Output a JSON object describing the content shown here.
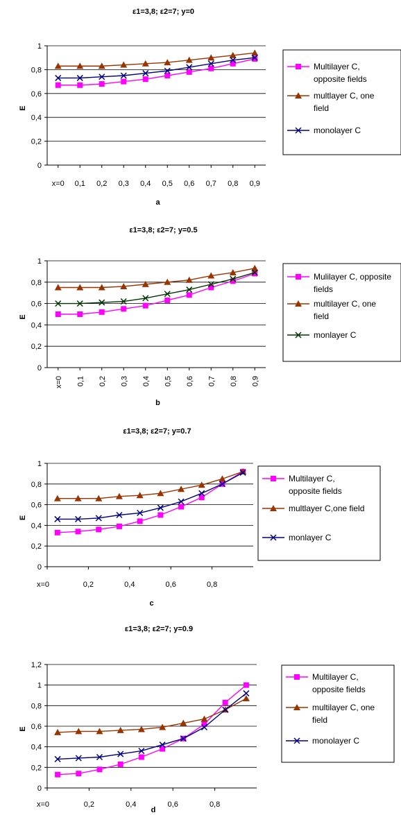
{
  "chart_data": [
    {
      "type": "line",
      "title": "ε1=3,8; ε2=7;  y=0",
      "caption": "a",
      "ylabel": "E",
      "xlabel": "",
      "ylim": [
        0,
        1
      ],
      "y_ticks": [
        "0",
        "0,2",
        "0,4",
        "0,6",
        "0,8",
        "1"
      ],
      "x_ticks": [
        "x=0",
        "0,1",
        "0,2",
        "0,3",
        "0,4",
        "0,5",
        "0,6",
        "0,7",
        "0,8",
        "0,9"
      ],
      "x_tick_rotated": false,
      "x": [
        0,
        0.1,
        0.2,
        0.3,
        0.4,
        0.5,
        0.6,
        0.7,
        0.8,
        0.9
      ],
      "grid": true,
      "legend_position": "right",
      "series": [
        {
          "name": "Multilayer C, opposite fields",
          "legend_lines": [
            "Multilayer C,",
            "opposite fields"
          ],
          "marker": "square",
          "color": "#ff00ff",
          "values": [
            0.67,
            0.67,
            0.68,
            0.7,
            0.72,
            0.75,
            0.78,
            0.81,
            0.85,
            0.89
          ]
        },
        {
          "name": "multlayer C, one field",
          "legend_lines": [
            "multlayer C, one",
            "field"
          ],
          "marker": "triangle",
          "color": "#993300",
          "values": [
            0.83,
            0.83,
            0.83,
            0.84,
            0.85,
            0.86,
            0.88,
            0.9,
            0.92,
            0.94
          ]
        },
        {
          "name": "monolayer C",
          "legend_lines": [
            "monolayer C"
          ],
          "marker": "x",
          "color": "#000080",
          "values": [
            0.73,
            0.73,
            0.74,
            0.75,
            0.77,
            0.79,
            0.82,
            0.85,
            0.88,
            0.9
          ]
        }
      ]
    },
    {
      "type": "line",
      "title": "ε1=3,8; ε2=7;  y=0.5",
      "caption": "b",
      "ylabel": "E",
      "xlabel": "",
      "ylim": [
        0,
        1
      ],
      "y_ticks": [
        "0",
        "0,2",
        "0,4",
        "0,6",
        "0,8",
        "1"
      ],
      "x_ticks": [
        "x=0",
        "0,1",
        "0,2",
        "0,3",
        "0,4",
        "0,5",
        "0,6",
        "0,7",
        "0,8",
        "0,9"
      ],
      "x_tick_rotated": true,
      "x": [
        0,
        0.1,
        0.2,
        0.3,
        0.4,
        0.5,
        0.6,
        0.7,
        0.8,
        0.9
      ],
      "grid": true,
      "legend_position": "right",
      "series": [
        {
          "name": "Mulilayer C, opposite fields",
          "legend_lines": [
            "Mulilayer C, opposite",
            "fields"
          ],
          "marker": "square",
          "color": "#ff00ff",
          "values": [
            0.5,
            0.5,
            0.52,
            0.55,
            0.58,
            0.63,
            0.68,
            0.75,
            0.81,
            0.88
          ]
        },
        {
          "name": "multilayer C, one field",
          "legend_lines": [
            "multilayer C, one",
            "field"
          ],
          "marker": "triangle",
          "color": "#993300",
          "values": [
            0.75,
            0.75,
            0.75,
            0.76,
            0.78,
            0.8,
            0.82,
            0.86,
            0.89,
            0.93
          ]
        },
        {
          "name": "monlayer C",
          "legend_lines": [
            "monlayer C"
          ],
          "marker": "x",
          "color": "#003300",
          "values": [
            0.6,
            0.6,
            0.61,
            0.62,
            0.65,
            0.69,
            0.73,
            0.78,
            0.83,
            0.89
          ]
        }
      ]
    },
    {
      "type": "line",
      "title": "ε1=3,8; ε2=7;  y=0.7",
      "caption": "c",
      "ylabel": "E",
      "xlabel": "",
      "ylim": [
        0,
        1
      ],
      "y_ticks": [
        "0",
        "0,2",
        "0,4",
        "0,6",
        "0,8",
        "1"
      ],
      "x_ticks": [
        "x=0",
        "0,2",
        "0,4",
        "0,6",
        "0,8"
      ],
      "x_tick_rotated": false,
      "x": [
        0.05,
        0.15,
        0.25,
        0.35,
        0.45,
        0.55,
        0.65,
        0.75,
        0.85,
        0.95
      ],
      "grid": true,
      "legend_position": "right",
      "series": [
        {
          "name": "Multilayer C, opposite fields",
          "legend_lines": [
            "Multilayer C,",
            "opposite fields"
          ],
          "marker": "square",
          "color": "#ff00ff",
          "values": [
            0.33,
            0.34,
            0.36,
            0.39,
            0.44,
            0.5,
            0.58,
            0.67,
            0.8,
            0.92
          ]
        },
        {
          "name": "multlayer C,one field",
          "legend_lines": [
            "multlayer C,one field"
          ],
          "marker": "triangle",
          "color": "#993300",
          "values": [
            0.66,
            0.66,
            0.66,
            0.68,
            0.69,
            0.71,
            0.75,
            0.79,
            0.85,
            0.92
          ]
        },
        {
          "name": "monlayer C",
          "legend_lines": [
            "monlayer C"
          ],
          "marker": "x",
          "color": "#000080",
          "values": [
            0.46,
            0.46,
            0.47,
            0.5,
            0.52,
            0.57,
            0.63,
            0.71,
            0.8,
            0.91
          ]
        }
      ]
    },
    {
      "type": "line",
      "title": "ε1=3,8; ε2=7;  y=0.9",
      "caption": "d",
      "ylabel": "E",
      "xlabel": "",
      "ylim": [
        0,
        1.2
      ],
      "y_ticks": [
        "0",
        "0,2",
        "0,4",
        "0,6",
        "0,8",
        "1",
        "1,2"
      ],
      "x_ticks": [
        "x=0",
        "0,2",
        "0,4",
        "0,6",
        "0,8"
      ],
      "x_tick_rotated": false,
      "x": [
        0.05,
        0.15,
        0.25,
        0.35,
        0.45,
        0.55,
        0.65,
        0.75,
        0.85,
        0.95
      ],
      "grid": true,
      "legend_position": "right",
      "series": [
        {
          "name": "Multilayer C, opposite fields",
          "legend_lines": [
            "Multilayer C,",
            "opposite fields"
          ],
          "marker": "square",
          "color": "#ff00ff",
          "values": [
            0.13,
            0.14,
            0.18,
            0.23,
            0.3,
            0.38,
            0.48,
            0.62,
            0.83,
            1.0
          ]
        },
        {
          "name": "multilayer C, one field",
          "legend_lines": [
            "multilayer C, one",
            "field"
          ],
          "marker": "triangle",
          "color": "#993300",
          "values": [
            0.54,
            0.55,
            0.55,
            0.56,
            0.57,
            0.59,
            0.63,
            0.67,
            0.76,
            0.87
          ]
        },
        {
          "name": "monolayer C",
          "legend_lines": [
            "monolayer C"
          ],
          "marker": "x",
          "color": "#000080",
          "values": [
            0.28,
            0.29,
            0.3,
            0.33,
            0.36,
            0.42,
            0.48,
            0.59,
            0.76,
            0.92
          ]
        }
      ]
    }
  ]
}
